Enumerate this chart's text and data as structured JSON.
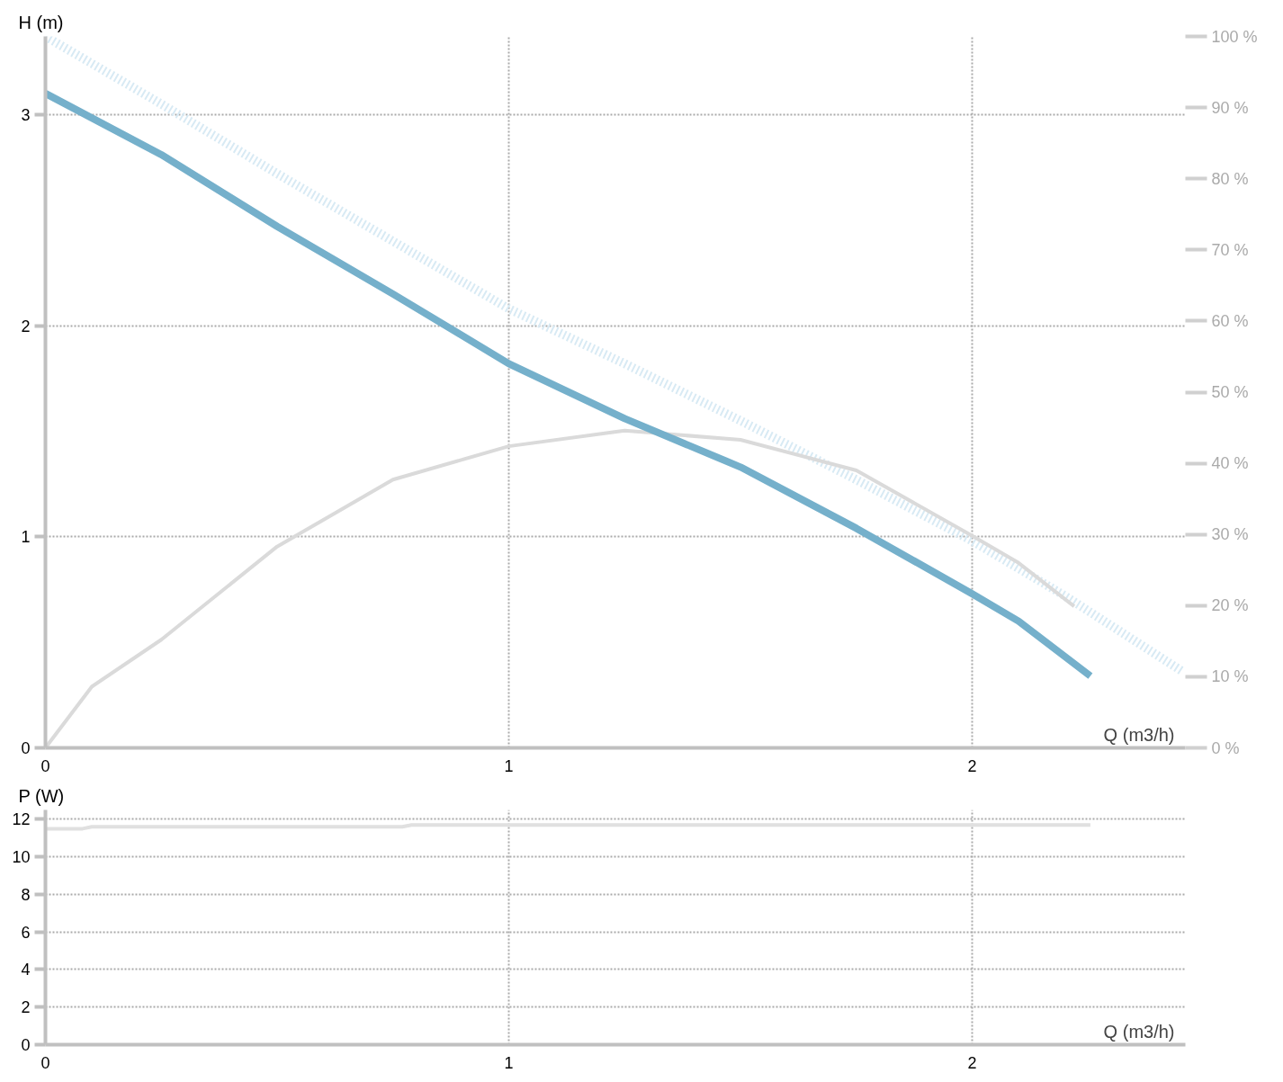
{
  "chart_data": [
    {
      "type": "line",
      "xlabel": "Q (m3/h)",
      "ylabel": "H (m)",
      "xlim": [
        0,
        2.46
      ],
      "ylim": [
        0,
        3.37
      ],
      "y2lim": [
        0,
        100
      ],
      "xticks": [
        0,
        1,
        2
      ],
      "yticks": [
        0,
        1,
        2,
        3
      ],
      "y2ticks": [
        {
          "value": 0,
          "label": "0 %"
        },
        {
          "value": 10,
          "label": "10 %"
        },
        {
          "value": 20,
          "label": "20 %"
        },
        {
          "value": 30,
          "label": "30 %"
        },
        {
          "value": 40,
          "label": "40 %"
        },
        {
          "value": 50,
          "label": "50 %"
        },
        {
          "value": 60,
          "label": "60 %"
        },
        {
          "value": 70,
          "label": "70 %"
        },
        {
          "value": 80,
          "label": "80 %"
        },
        {
          "value": 90,
          "label": "90 %"
        },
        {
          "value": 100,
          "label": "100 %"
        }
      ],
      "grid": true,
      "series": [
        {
          "color": "#d8eaf4",
          "line_style": "dotted",
          "x": [
            0,
            0.25,
            0.5,
            0.75,
            1,
            1.25,
            1.5,
            1.75,
            2,
            2.2,
            2.455
          ],
          "values": [
            3.37,
            3.05,
            2.72,
            2.4,
            2.08,
            1.82,
            1.55,
            1.27,
            0.98,
            0.72,
            0.36
          ]
        },
        {
          "color": "#dadada",
          "axis": "y2",
          "x": [
            0,
            0.1,
            0.25,
            0.5,
            0.75,
            1,
            1.25,
            1.5,
            1.75,
            2,
            2.1,
            2.22
          ],
          "values": [
            0,
            8.6,
            15.2,
            28.3,
            37.7,
            42.4,
            44.6,
            43.3,
            39,
            29.8,
            26,
            19.9
          ]
        },
        {
          "color": "#75b0cb",
          "line_style": "solid",
          "x": [
            0,
            0.25,
            0.5,
            0.75,
            1,
            1.25,
            1.5,
            1.75,
            2,
            2.1,
            2.255
          ],
          "values": [
            3.1,
            2.81,
            2.47,
            2.15,
            1.82,
            1.56,
            1.33,
            1.04,
            0.73,
            0.6,
            0.34
          ]
        }
      ]
    },
    {
      "type": "line",
      "xlabel": "Q (m3/h)",
      "ylabel": "P (W)",
      "xlim": [
        0,
        2.46
      ],
      "ylim": [
        0,
        12.5
      ],
      "xticks": [
        0,
        1,
        2
      ],
      "yticks": [
        0,
        2,
        4,
        6,
        8,
        10,
        12
      ],
      "grid": true,
      "series": [
        {
          "color": "#e0e0e0",
          "x": [
            0,
            0.08,
            0.1,
            0.77,
            0.79,
            2.255
          ],
          "values": [
            11.5,
            11.5,
            11.6,
            11.6,
            11.7,
            11.7
          ]
        }
      ]
    }
  ]
}
